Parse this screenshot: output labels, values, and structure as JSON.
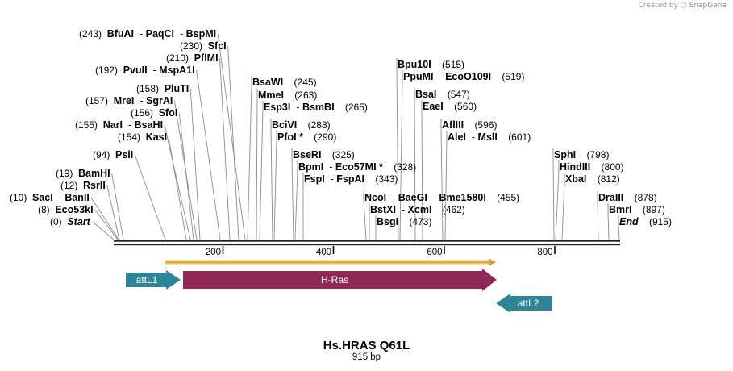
{
  "credit": {
    "prefix": "Created by",
    "brand": "SnapGene"
  },
  "title": "Hs.HRAS Q61L",
  "subtitle": "915 bp",
  "ticks": [
    "200",
    "400",
    "600",
    "800"
  ],
  "features": {
    "attL1": "attL1",
    "hras": "H-Ras",
    "attL2": "attL2"
  },
  "sites": [
    {
      "num": "(0)",
      "parts": [
        "Start"
      ],
      "italic": true
    },
    {
      "num": "(8)",
      "parts": [
        "Eco53kI"
      ]
    },
    {
      "num": "(10)",
      "parts": [
        "SacI",
        "BanII"
      ]
    },
    {
      "num": "(12)",
      "parts": [
        "RsrII"
      ]
    },
    {
      "num": "(19)",
      "parts": [
        "BamHI"
      ]
    },
    {
      "num": "(94)",
      "parts": [
        "PsiI"
      ]
    },
    {
      "num": "(154)",
      "parts": [
        "KasI"
      ]
    },
    {
      "num": "(155)",
      "parts": [
        "NarI",
        "BsaHI"
      ]
    },
    {
      "num": "(156)",
      "parts": [
        "SfoI"
      ]
    },
    {
      "num": "(157)",
      "parts": [
        "MreI",
        "SgrAI"
      ]
    },
    {
      "num": "(158)",
      "parts": [
        "PluTI"
      ]
    },
    {
      "num": "(192)",
      "parts": [
        "PvuII",
        "MspA1I"
      ]
    },
    {
      "num": "(210)",
      "parts": [
        "PflMI"
      ]
    },
    {
      "num": "(230)",
      "parts": [
        "SfcI"
      ]
    },
    {
      "num": "(243)",
      "parts": [
        "BfuAI",
        "PaqCI",
        "BspMI"
      ]
    },
    {
      "num": "(245)",
      "parts": [
        "BsaWI"
      ]
    },
    {
      "num": "(263)",
      "parts": [
        "MmeI"
      ]
    },
    {
      "num": "(265)",
      "parts": [
        "Esp3I",
        "BsmBI"
      ]
    },
    {
      "num": "(288)",
      "parts": [
        "BciVI"
      ]
    },
    {
      "num": "(290)",
      "parts": [
        "PfoI *"
      ]
    },
    {
      "num": "(325)",
      "parts": [
        "BseRI"
      ]
    },
    {
      "num": "(328)",
      "parts": [
        "BpmI",
        "Eco57MI *"
      ]
    },
    {
      "num": "(343)",
      "parts": [
        "FspI",
        "FspAI"
      ]
    },
    {
      "num": "(455)",
      "parts": [
        "NcoI",
        "BaeGI",
        "Bme1580I"
      ]
    },
    {
      "num": "(462)",
      "parts": [
        "BstXI",
        "XcmI"
      ]
    },
    {
      "num": "(473)",
      "parts": [
        "BsgI"
      ]
    },
    {
      "num": "(515)",
      "parts": [
        "Bpu10I"
      ]
    },
    {
      "num": "(519)",
      "parts": [
        "PpuMI",
        "EcoO109I"
      ]
    },
    {
      "num": "(547)",
      "parts": [
        "BsaI"
      ]
    },
    {
      "num": "(560)",
      "parts": [
        "EaeI"
      ]
    },
    {
      "num": "(596)",
      "parts": [
        "AflIII"
      ]
    },
    {
      "num": "(601)",
      "parts": [
        "AleI",
        "MslI"
      ]
    },
    {
      "num": "(798)",
      "parts": [
        "SphI"
      ]
    },
    {
      "num": "(800)",
      "parts": [
        "HindIII"
      ]
    },
    {
      "num": "(812)",
      "parts": [
        "XbaI"
      ]
    },
    {
      "num": "(878)",
      "parts": [
        "DraIII"
      ]
    },
    {
      "num": "(897)",
      "parts": [
        "BmrI"
      ]
    },
    {
      "num": "(915)",
      "parts": [
        "End"
      ],
      "italic": true
    }
  ],
  "colors": {
    "backbone": "#222222",
    "attL": "#2e8597",
    "hras": "#8f2857",
    "orf": "#f2c060"
  }
}
